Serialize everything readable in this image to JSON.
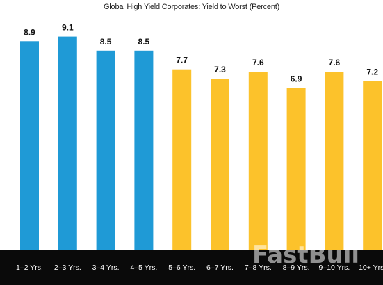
{
  "chart_data": {
    "type": "bar",
    "title": "Global High Yield Corporates: Yield to Worst (Percent)",
    "categories": [
      "1–2 Yrs.",
      "2–3 Yrs.",
      "3–4 Yrs.",
      "4–5 Yrs.",
      "5–6 Yrs.",
      "6–7 Yrs.",
      "7–8 Yrs.",
      "8–9 Yrs.",
      "9–10 Yrs.",
      "10+ Yrs."
    ],
    "values": [
      8.9,
      9.1,
      8.5,
      8.5,
      7.7,
      7.3,
      7.6,
      6.9,
      7.6,
      7.2
    ],
    "data_labels": [
      "8.9",
      "9.1",
      "8.5",
      "8.5",
      "7.7",
      "7.3",
      "7.6",
      "6.9",
      "7.6",
      "7.2"
    ],
    "bar_colors": [
      "#1f9ad6",
      "#1f9ad6",
      "#1f9ad6",
      "#1f9ad6",
      "#fcc22b",
      "#fcc22b",
      "#fcc22b",
      "#fcc22b",
      "#fcc22b",
      "#fcc22b"
    ],
    "ylim": [
      0,
      9.8
    ],
    "grid": false,
    "category_band_color": "#0a0a0a",
    "watermark": "FastBull"
  }
}
